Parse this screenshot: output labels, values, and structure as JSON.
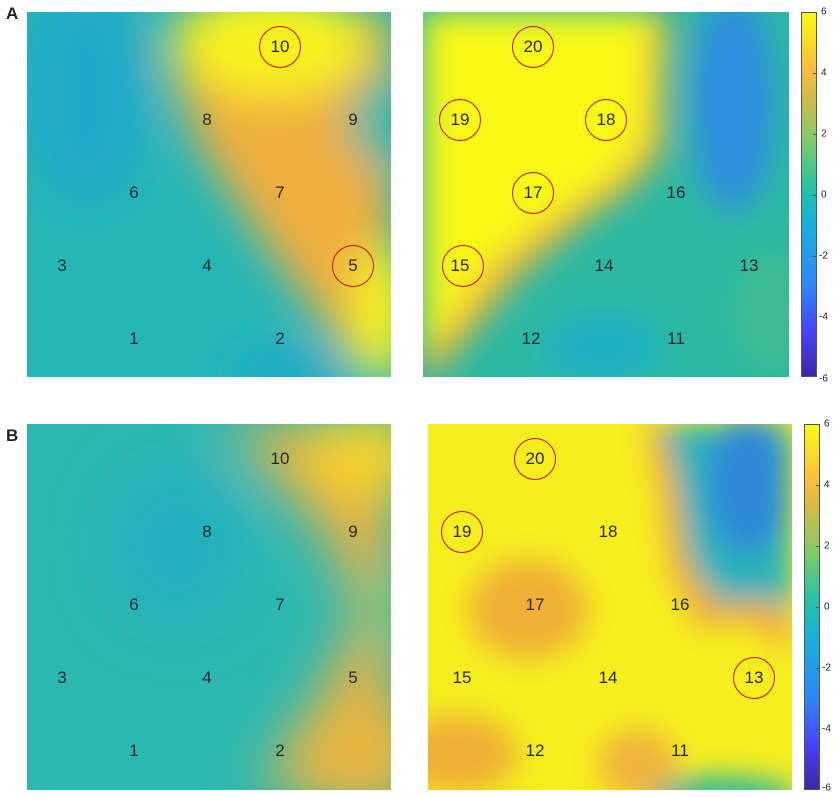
{
  "figure": {
    "panel_letters": [
      "A",
      "B"
    ],
    "colors": {
      "teal": "#2ab6b0",
      "orange": "#f2ad3a",
      "yellow": "#f9fa16",
      "blue": "#2f86fb",
      "ring": "#c8102e"
    }
  },
  "chart_data": [
    {
      "type": "heatmap",
      "panel": "A",
      "title": "",
      "xlabel": "",
      "ylabel": "",
      "colorbar": {
        "min": -6,
        "max": 6,
        "ticks": [
          "6",
          "4",
          "2",
          "0",
          "-2",
          "-4",
          "-6"
        ]
      },
      "maps": [
        {
          "sites": [
            {
              "id": "10",
              "circled": true
            },
            {
              "id": "8",
              "circled": false
            },
            {
              "id": "9",
              "circled": false
            },
            {
              "id": "6",
              "circled": false
            },
            {
              "id": "7",
              "circled": false
            },
            {
              "id": "3",
              "circled": false
            },
            {
              "id": "4",
              "circled": false
            },
            {
              "id": "5",
              "circled": true
            },
            {
              "id": "1",
              "circled": false
            },
            {
              "id": "2",
              "circled": false
            }
          ]
        },
        {
          "sites": [
            {
              "id": "20",
              "circled": true
            },
            {
              "id": "19",
              "circled": true
            },
            {
              "id": "18",
              "circled": true
            },
            {
              "id": "17",
              "circled": true
            },
            {
              "id": "16",
              "circled": false
            },
            {
              "id": "15",
              "circled": true
            },
            {
              "id": "14",
              "circled": false
            },
            {
              "id": "13",
              "circled": false
            },
            {
              "id": "12",
              "circled": false
            },
            {
              "id": "11",
              "circled": false
            }
          ]
        }
      ]
    },
    {
      "type": "heatmap",
      "panel": "B",
      "title": "",
      "xlabel": "",
      "ylabel": "",
      "colorbar": {
        "min": -6,
        "max": 6,
        "ticks": [
          "6",
          "4",
          "2",
          "0",
          "-2",
          "-4",
          "-6"
        ]
      },
      "maps": [
        {
          "sites": [
            {
              "id": "10",
              "circled": false
            },
            {
              "id": "8",
              "circled": false
            },
            {
              "id": "9",
              "circled": false
            },
            {
              "id": "6",
              "circled": false
            },
            {
              "id": "7",
              "circled": false
            },
            {
              "id": "3",
              "circled": false
            },
            {
              "id": "4",
              "circled": false
            },
            {
              "id": "5",
              "circled": false
            },
            {
              "id": "1",
              "circled": false
            },
            {
              "id": "2",
              "circled": false
            }
          ]
        },
        {
          "sites": [
            {
              "id": "20",
              "circled": true
            },
            {
              "id": "19",
              "circled": true
            },
            {
              "id": "18",
              "circled": false
            },
            {
              "id": "17",
              "circled": false
            },
            {
              "id": "16",
              "circled": false
            },
            {
              "id": "15",
              "circled": false
            },
            {
              "id": "14",
              "circled": false
            },
            {
              "id": "13",
              "circled": true
            },
            {
              "id": "12",
              "circled": false
            },
            {
              "id": "11",
              "circled": false
            }
          ]
        }
      ]
    }
  ]
}
